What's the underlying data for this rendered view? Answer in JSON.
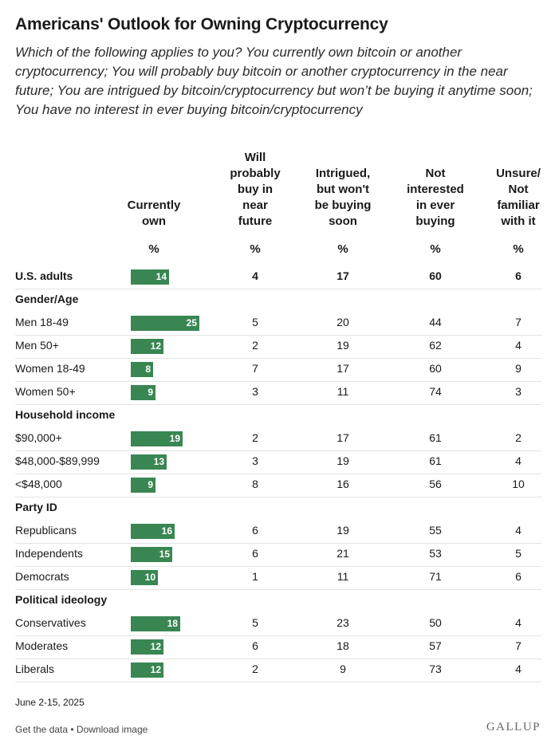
{
  "header": {
    "title": "Americans' Outlook for Owning Cryptocurrency",
    "subtitle": "Which of the following applies to you? You currently own bitcoin or another cryptocurrency; You will probably buy bitcoin or another cryptocurrency in the near future; You are intrigued by bitcoin/cryptocurrency but won’t be buying it anytime soon; You have no interest in ever buying bitcoin/cryptocurrency"
  },
  "columns": [
    {
      "lines": [
        "Currently",
        "own"
      ],
      "unit": "%"
    },
    {
      "lines": [
        "Will",
        "probably",
        "buy in",
        "near",
        "future"
      ],
      "unit": "%"
    },
    {
      "lines": [
        "Intrigued,",
        "but won't",
        "be buying",
        "soon"
      ],
      "unit": "%"
    },
    {
      "lines": [
        "Not",
        "interested",
        "in ever",
        "buying"
      ],
      "unit": "%"
    },
    {
      "lines": [
        "Unsure/",
        "Not",
        "familiar",
        "with it"
      ],
      "unit": "%"
    }
  ],
  "chart_data": {
    "type": "table",
    "title": "Americans' Outlook for Owning Cryptocurrency",
    "bar_color": "#3a8653",
    "rows": [
      {
        "label": "U.S. adults",
        "bold": true,
        "values": [
          14,
          4,
          17,
          60,
          6
        ]
      },
      {
        "label": "Gender/Age",
        "group": true
      },
      {
        "label": "Men 18-49",
        "values": [
          25,
          5,
          20,
          44,
          7
        ]
      },
      {
        "label": "Men 50+",
        "values": [
          12,
          2,
          19,
          62,
          4
        ]
      },
      {
        "label": "Women 18-49",
        "values": [
          8,
          7,
          17,
          60,
          9
        ]
      },
      {
        "label": "Women 50+",
        "values": [
          9,
          3,
          11,
          74,
          3
        ]
      },
      {
        "label": "Household income",
        "group": true
      },
      {
        "label": "$90,000+",
        "values": [
          19,
          2,
          17,
          61,
          2
        ]
      },
      {
        "label": "$48,000-$89,999",
        "values": [
          13,
          3,
          19,
          61,
          4
        ]
      },
      {
        "label": "<$48,000",
        "values": [
          9,
          8,
          16,
          56,
          10
        ]
      },
      {
        "label": "Party ID",
        "group": true
      },
      {
        "label": "Republicans",
        "values": [
          16,
          6,
          19,
          55,
          4
        ]
      },
      {
        "label": "Independents",
        "values": [
          15,
          6,
          21,
          53,
          5
        ]
      },
      {
        "label": "Democrats",
        "values": [
          10,
          1,
          11,
          71,
          6
        ]
      },
      {
        "label": "Political ideology",
        "group": true
      },
      {
        "label": "Conservatives",
        "values": [
          18,
          5,
          23,
          50,
          4
        ]
      },
      {
        "label": "Moderates",
        "values": [
          12,
          6,
          18,
          57,
          7
        ]
      },
      {
        "label": "Liberals",
        "values": [
          12,
          2,
          9,
          73,
          4
        ]
      }
    ]
  },
  "footer": {
    "date": "June 2-15, 2025",
    "get_data": "Get the data",
    "separator": " • ",
    "download": "Download image",
    "brand": "GALLUP"
  }
}
